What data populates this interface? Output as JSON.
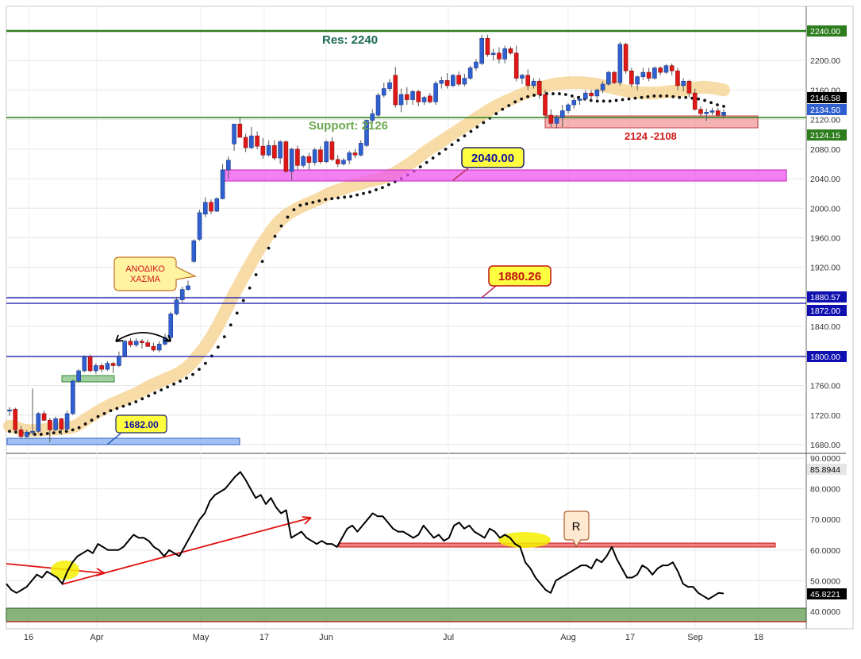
{
  "chart_data": [
    {
      "type": "candlestick",
      "ylim": [
        1665,
        2262
      ],
      "grid": true,
      "y_ticks": [
        "2240.00",
        "2200.00",
        "2160.00",
        "2120.00",
        "2080.00",
        "2040.00",
        "2000.00",
        "1960.00",
        "1920.00",
        "1880.00",
        "1840.00",
        "1800.00",
        "1760.00",
        "1720.00",
        "1680.00"
      ],
      "x_ticks": [
        "16",
        "Apr",
        "May",
        "17",
        "Jun",
        "Jul",
        "Aug",
        "17",
        "Sep",
        "18"
      ],
      "candles": [
        {
          "o": 1726,
          "h": 1731,
          "l": 1719,
          "c": 1727
        },
        {
          "o": 1728,
          "h": 1730,
          "l": 1698,
          "c": 1700
        },
        {
          "o": 1700,
          "h": 1705,
          "l": 1689,
          "c": 1691
        },
        {
          "o": 1691,
          "h": 1700,
          "l": 1688,
          "c": 1697
        },
        {
          "o": 1697,
          "h": 1756,
          "l": 1693,
          "c": 1698
        },
        {
          "o": 1698,
          "h": 1724,
          "l": 1696,
          "c": 1722
        },
        {
          "o": 1722,
          "h": 1726,
          "l": 1712,
          "c": 1713
        },
        {
          "o": 1713,
          "h": 1716,
          "l": 1683,
          "c": 1700
        },
        {
          "o": 1700,
          "h": 1718,
          "l": 1698,
          "c": 1715
        },
        {
          "o": 1715,
          "h": 1716,
          "l": 1693,
          "c": 1701
        },
        {
          "o": 1701,
          "h": 1726,
          "l": 1699,
          "c": 1722
        },
        {
          "o": 1722,
          "h": 1768,
          "l": 1720,
          "c": 1766
        },
        {
          "o": 1766,
          "h": 1782,
          "l": 1764,
          "c": 1780
        },
        {
          "o": 1780,
          "h": 1801,
          "l": 1778,
          "c": 1799
        },
        {
          "o": 1799,
          "h": 1802,
          "l": 1778,
          "c": 1780
        },
        {
          "o": 1780,
          "h": 1790,
          "l": 1776,
          "c": 1787
        },
        {
          "o": 1787,
          "h": 1790,
          "l": 1778,
          "c": 1782
        },
        {
          "o": 1782,
          "h": 1793,
          "l": 1780,
          "c": 1790
        },
        {
          "o": 1790,
          "h": 1792,
          "l": 1777,
          "c": 1787
        },
        {
          "o": 1787,
          "h": 1806,
          "l": 1785,
          "c": 1800
        },
        {
          "o": 1800,
          "h": 1822,
          "l": 1798,
          "c": 1820
        },
        {
          "o": 1820,
          "h": 1824,
          "l": 1812,
          "c": 1815
        },
        {
          "o": 1815,
          "h": 1824,
          "l": 1812,
          "c": 1820
        },
        {
          "o": 1820,
          "h": 1823,
          "l": 1810,
          "c": 1818
        },
        {
          "o": 1818,
          "h": 1822,
          "l": 1812,
          "c": 1813
        },
        {
          "o": 1813,
          "h": 1818,
          "l": 1806,
          "c": 1808
        },
        {
          "o": 1808,
          "h": 1820,
          "l": 1805,
          "c": 1816
        },
        {
          "o": 1816,
          "h": 1830,
          "l": 1814,
          "c": 1825
        },
        {
          "o": 1825,
          "h": 1860,
          "l": 1822,
          "c": 1857
        },
        {
          "o": 1857,
          "h": 1880,
          "l": 1855,
          "c": 1876
        },
        {
          "o": 1876,
          "h": 1894,
          "l": 1872,
          "c": 1890
        },
        {
          "o": 1890,
          "h": 1902,
          "l": 1888,
          "c": 1895
        },
        {
          "o": 1928,
          "h": 1958,
          "l": 1926,
          "c": 1956
        },
        {
          "o": 1958,
          "h": 1998,
          "l": 1956,
          "c": 1994
        },
        {
          "o": 1992,
          "h": 2015,
          "l": 1988,
          "c": 2008
        },
        {
          "o": 2008,
          "h": 2012,
          "l": 1992,
          "c": 1996
        },
        {
          "o": 1996,
          "h": 2015,
          "l": 1995,
          "c": 2013
        },
        {
          "o": 2013,
          "h": 2060,
          "l": 2012,
          "c": 2052
        },
        {
          "o": 2052,
          "h": 2070,
          "l": 2040,
          "c": 2065
        },
        {
          "o": 2087,
          "h": 2112,
          "l": 2078,
          "c": 2114
        },
        {
          "o": 2114,
          "h": 2123,
          "l": 2096,
          "c": 2096
        },
        {
          "o": 2096,
          "h": 2101,
          "l": 2076,
          "c": 2082
        },
        {
          "o": 2082,
          "h": 2110,
          "l": 2080,
          "c": 2098
        },
        {
          "o": 2098,
          "h": 2104,
          "l": 2080,
          "c": 2084
        },
        {
          "o": 2084,
          "h": 2095,
          "l": 2067,
          "c": 2072
        },
        {
          "o": 2072,
          "h": 2092,
          "l": 2070,
          "c": 2085
        },
        {
          "o": 2085,
          "h": 2092,
          "l": 2065,
          "c": 2068
        },
        {
          "o": 2068,
          "h": 2092,
          "l": 2060,
          "c": 2090
        },
        {
          "o": 2090,
          "h": 2092,
          "l": 2048,
          "c": 2050
        },
        {
          "o": 2050,
          "h": 2082,
          "l": 2038,
          "c": 2080
        },
        {
          "o": 2080,
          "h": 2085,
          "l": 2052,
          "c": 2058
        },
        {
          "o": 2058,
          "h": 2072,
          "l": 2055,
          "c": 2070
        },
        {
          "o": 2070,
          "h": 2075,
          "l": 2052,
          "c": 2062
        },
        {
          "o": 2062,
          "h": 2082,
          "l": 2058,
          "c": 2079
        },
        {
          "o": 2079,
          "h": 2084,
          "l": 2060,
          "c": 2063
        },
        {
          "o": 2063,
          "h": 2092,
          "l": 2061,
          "c": 2090
        },
        {
          "o": 2090,
          "h": 2096,
          "l": 2064,
          "c": 2066
        },
        {
          "o": 2066,
          "h": 2072,
          "l": 2056,
          "c": 2060
        },
        {
          "o": 2060,
          "h": 2068,
          "l": 2058,
          "c": 2065
        },
        {
          "o": 2065,
          "h": 2078,
          "l": 2060,
          "c": 2075
        },
        {
          "o": 2075,
          "h": 2080,
          "l": 2068,
          "c": 2072
        },
        {
          "o": 2072,
          "h": 2092,
          "l": 2070,
          "c": 2088
        },
        {
          "o": 2085,
          "h": 2120,
          "l": 2083,
          "c": 2119
        },
        {
          "o": 2119,
          "h": 2134,
          "l": 2115,
          "c": 2128
        },
        {
          "o": 2126,
          "h": 2156,
          "l": 2124,
          "c": 2153
        },
        {
          "o": 2153,
          "h": 2170,
          "l": 2150,
          "c": 2162
        },
        {
          "o": 2162,
          "h": 2175,
          "l": 2158,
          "c": 2170
        },
        {
          "o": 2180,
          "h": 2191,
          "l": 2136,
          "c": 2140
        },
        {
          "o": 2140,
          "h": 2162,
          "l": 2130,
          "c": 2154
        },
        {
          "o": 2154,
          "h": 2164,
          "l": 2140,
          "c": 2147
        },
        {
          "o": 2147,
          "h": 2160,
          "l": 2140,
          "c": 2158
        },
        {
          "o": 2158,
          "h": 2160,
          "l": 2138,
          "c": 2144
        },
        {
          "o": 2144,
          "h": 2152,
          "l": 2140,
          "c": 2150
        },
        {
          "o": 2152,
          "h": 2156,
          "l": 2142,
          "c": 2144
        },
        {
          "o": 2144,
          "h": 2172,
          "l": 2140,
          "c": 2169
        },
        {
          "o": 2169,
          "h": 2178,
          "l": 2162,
          "c": 2173
        },
        {
          "o": 2173,
          "h": 2183,
          "l": 2162,
          "c": 2166
        },
        {
          "o": 2166,
          "h": 2182,
          "l": 2164,
          "c": 2180
        },
        {
          "o": 2180,
          "h": 2185,
          "l": 2165,
          "c": 2168
        },
        {
          "o": 2168,
          "h": 2182,
          "l": 2165,
          "c": 2176
        },
        {
          "o": 2176,
          "h": 2193,
          "l": 2174,
          "c": 2190
        },
        {
          "o": 2190,
          "h": 2202,
          "l": 2186,
          "c": 2198
        },
        {
          "o": 2196,
          "h": 2235,
          "l": 2194,
          "c": 2230
        },
        {
          "o": 2230,
          "h": 2235,
          "l": 2205,
          "c": 2208
        },
        {
          "o": 2208,
          "h": 2216,
          "l": 2200,
          "c": 2210
        },
        {
          "o": 2210,
          "h": 2218,
          "l": 2196,
          "c": 2202
        },
        {
          "o": 2202,
          "h": 2220,
          "l": 2196,
          "c": 2216
        },
        {
          "o": 2216,
          "h": 2219,
          "l": 2208,
          "c": 2210
        },
        {
          "o": 2210,
          "h": 2220,
          "l": 2172,
          "c": 2176
        },
        {
          "o": 2176,
          "h": 2182,
          "l": 2168,
          "c": 2180
        },
        {
          "o": 2180,
          "h": 2188,
          "l": 2160,
          "c": 2166
        },
        {
          "o": 2166,
          "h": 2176,
          "l": 2162,
          "c": 2172
        },
        {
          "o": 2172,
          "h": 2176,
          "l": 2148,
          "c": 2154
        },
        {
          "o": 2154,
          "h": 2160,
          "l": 2122,
          "c": 2126
        },
        {
          "o": 2126,
          "h": 2134,
          "l": 2110,
          "c": 2115
        },
        {
          "o": 2115,
          "h": 2126,
          "l": 2108,
          "c": 2123
        },
        {
          "o": 2123,
          "h": 2140,
          "l": 2110,
          "c": 2132
        },
        {
          "o": 2132,
          "h": 2142,
          "l": 2128,
          "c": 2140
        },
        {
          "o": 2140,
          "h": 2150,
          "l": 2135,
          "c": 2146
        },
        {
          "o": 2146,
          "h": 2152,
          "l": 2140,
          "c": 2148
        },
        {
          "o": 2148,
          "h": 2160,
          "l": 2145,
          "c": 2156
        },
        {
          "o": 2156,
          "h": 2160,
          "l": 2146,
          "c": 2152
        },
        {
          "o": 2152,
          "h": 2162,
          "l": 2148,
          "c": 2160
        },
        {
          "o": 2160,
          "h": 2172,
          "l": 2156,
          "c": 2168
        },
        {
          "o": 2168,
          "h": 2186,
          "l": 2166,
          "c": 2184
        },
        {
          "o": 2184,
          "h": 2186,
          "l": 2168,
          "c": 2170
        },
        {
          "o": 2170,
          "h": 2225,
          "l": 2166,
          "c": 2222
        },
        {
          "o": 2222,
          "h": 2224,
          "l": 2182,
          "c": 2186
        },
        {
          "o": 2186,
          "h": 2190,
          "l": 2164,
          "c": 2168
        },
        {
          "o": 2168,
          "h": 2180,
          "l": 2160,
          "c": 2178
        },
        {
          "o": 2178,
          "h": 2190,
          "l": 2174,
          "c": 2184
        },
        {
          "o": 2184,
          "h": 2190,
          "l": 2172,
          "c": 2176
        },
        {
          "o": 2176,
          "h": 2192,
          "l": 2174,
          "c": 2190
        },
        {
          "o": 2190,
          "h": 2192,
          "l": 2180,
          "c": 2184
        },
        {
          "o": 2184,
          "h": 2195,
          "l": 2182,
          "c": 2193
        },
        {
          "o": 2193,
          "h": 2196,
          "l": 2180,
          "c": 2186
        },
        {
          "o": 2186,
          "h": 2190,
          "l": 2160,
          "c": 2166
        },
        {
          "o": 2166,
          "h": 2176,
          "l": 2158,
          "c": 2172
        },
        {
          "o": 2172,
          "h": 2174,
          "l": 2150,
          "c": 2156
        },
        {
          "o": 2156,
          "h": 2162,
          "l": 2132,
          "c": 2134
        },
        {
          "o": 2134,
          "h": 2138,
          "l": 2124,
          "c": 2128
        },
        {
          "o": 2128,
          "h": 2135,
          "l": 2118,
          "c": 2130
        },
        {
          "o": 2130,
          "h": 2136,
          "l": 2126,
          "c": 2132
        },
        {
          "o": 2132,
          "h": 2136,
          "l": 2124,
          "c": 2126
        },
        {
          "o": 2126,
          "h": 2134,
          "l": 2122,
          "c": 2130
        }
      ],
      "ema": [
        1705,
        1703,
        1700,
        1699,
        1699,
        1700,
        1701,
        1701,
        1702,
        1703,
        1706,
        1712,
        1718,
        1724,
        1729,
        1734,
        1738,
        1742,
        1746,
        1750,
        1755,
        1760,
        1764,
        1768,
        1772,
        1776,
        1782,
        1790,
        1801,
        1812,
        1826,
        1842,
        1860,
        1878,
        1895,
        1912,
        1928,
        1944,
        1958,
        1971,
        1982,
        1990,
        1996,
        2001,
        2005,
        2009,
        2013,
        2018,
        2022,
        2025,
        2028,
        2031,
        2033,
        2036,
        2038,
        2040,
        2043,
        2047,
        2052,
        2058,
        2064,
        2071,
        2078,
        2084,
        2090,
        2096,
        2102,
        2108,
        2114,
        2120,
        2126,
        2132,
        2137,
        2142,
        2146,
        2150,
        2154,
        2158,
        2161,
        2164,
        2166,
        2168,
        2169,
        2170,
        2170,
        2170,
        2169,
        2168,
        2166,
        2164,
        2162,
        2160,
        2158,
        2157,
        2156,
        2156,
        2156,
        2157,
        2158,
        2159,
        2160,
        2162,
        2163,
        2164,
        2163,
        2162,
        2160
      ],
      "ema_dotted": [
        1698,
        1697,
        1696,
        1695,
        1694,
        1694,
        1695,
        1696,
        1697,
        1698,
        1700,
        1703,
        1708,
        1713,
        1718,
        1722,
        1726,
        1729,
        1732,
        1735,
        1738,
        1742,
        1746,
        1750,
        1754,
        1758,
        1762,
        1766,
        1770,
        1775,
        1782,
        1790,
        1800,
        1812,
        1826,
        1842,
        1858,
        1875,
        1892,
        1910,
        1928,
        1946,
        1962,
        1976,
        1988,
        1998,
        2004,
        2006,
        2008,
        2010,
        2012,
        2013,
        2014,
        2015,
        2016,
        2018,
        2020,
        2022,
        2025,
        2028,
        2032,
        2036,
        2040,
        2045,
        2050,
        2056,
        2062,
        2068,
        2074,
        2080,
        2086,
        2092,
        2098,
        2104,
        2110,
        2116,
        2122,
        2128,
        2134,
        2139,
        2144,
        2148,
        2151,
        2153,
        2154,
        2155,
        2155,
        2155,
        2154,
        2152,
        2150,
        2148,
        2146,
        2145,
        2145,
        2145,
        2146,
        2147,
        2148,
        2149,
        2150,
        2151,
        2152,
        2152,
        2152,
        2151,
        2150,
        2150,
        2149,
        2148,
        2146,
        2143,
        2140,
        2138
      ],
      "levels": {
        "res_label": "Res: 2240",
        "support_label": "Support: 2126",
        "zone_label": "2124 -2108",
        "gap_label": "ΑΝΟΔΙΚΟ\nΧΑΣΜΑ",
        "callout_2040": "2040.00",
        "callout_1880": "1880.26",
        "callout_1682": "1682.00"
      },
      "right_axis_tags": {
        "t2240": "2240.00",
        "t2146": "2146.58",
        "t2134": "2134.50",
        "t2120": "2120.00",
        "t2124": "2124.15",
        "t1880": "1880.57",
        "t1872": "1872.00",
        "t1800": "1800.00"
      }
    },
    {
      "type": "line",
      "ylim": [
        37,
        91
      ],
      "y_ticks": [
        "90.0000",
        "80.0000",
        "70.0000",
        "60.0000",
        "50.0000",
        "40.0000"
      ],
      "values": [
        49,
        47,
        46,
        47,
        48,
        50,
        52,
        51,
        53,
        52,
        51,
        49,
        53,
        56,
        58,
        59,
        60,
        59,
        62,
        61,
        60,
        60,
        60,
        61,
        63,
        65,
        64,
        64,
        63,
        61,
        60,
        58,
        60,
        59,
        58,
        61,
        64,
        67,
        70,
        72,
        76,
        78,
        79,
        80,
        82,
        84,
        85.5,
        83,
        80,
        77,
        78,
        75,
        77,
        74,
        72,
        73,
        64,
        65,
        66,
        64,
        63,
        62,
        63,
        62,
        62,
        61,
        64,
        67,
        68,
        66,
        68,
        70,
        72,
        71,
        71,
        69,
        67,
        66,
        66,
        65,
        64,
        65,
        68,
        66,
        64,
        65,
        63,
        64,
        68,
        69,
        67,
        68,
        66,
        65,
        64,
        67,
        66,
        64,
        65,
        64,
        62,
        61,
        56,
        54,
        51,
        49,
        47,
        46,
        50,
        51,
        52,
        53,
        54,
        55,
        55,
        54,
        57,
        56,
        58,
        61,
        57,
        54,
        51,
        51,
        52,
        55,
        54,
        52,
        54,
        55,
        55,
        56,
        53,
        49,
        48,
        48,
        46,
        45,
        44,
        45,
        46,
        45.82
      ],
      "markers": {
        "r_label": "R"
      },
      "right_axis_tags": {
        "top": "85.8944",
        "last": "45.8221"
      }
    }
  ]
}
